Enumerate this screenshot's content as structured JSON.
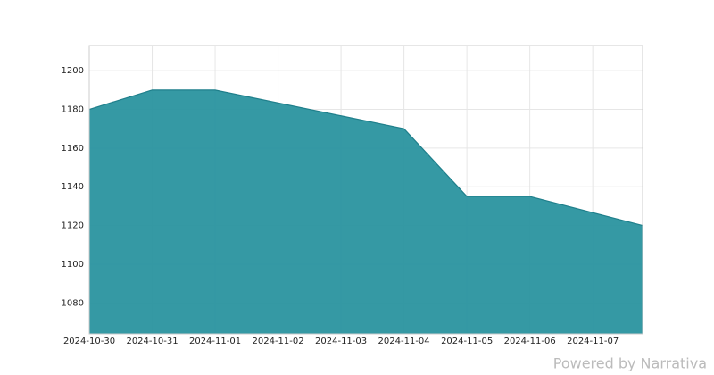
{
  "chart_data": {
    "type": "area",
    "x": [
      "2024-10-30",
      "2024-10-31",
      "2024-11-01",
      "2024-11-04",
      "2024-11-05",
      "2024-11-06",
      "2024-11-07T19:00"
    ],
    "values": [
      1180,
      1190,
      1190,
      1170,
      1135,
      1135,
      1120
    ],
    "color": "#2a939f",
    "xticks": [
      "2024-10-30",
      "2024-10-31",
      "2024-11-01",
      "2024-11-02",
      "2024-11-03",
      "2024-11-04",
      "2024-11-05",
      "2024-11-06",
      "2024-11-07"
    ],
    "ylim": [
      1064,
      1213
    ],
    "yticks": [
      1080,
      1100,
      1120,
      1140,
      1160,
      1180,
      1200
    ],
    "grid": true,
    "footer": "Powered by Narrativa"
  }
}
